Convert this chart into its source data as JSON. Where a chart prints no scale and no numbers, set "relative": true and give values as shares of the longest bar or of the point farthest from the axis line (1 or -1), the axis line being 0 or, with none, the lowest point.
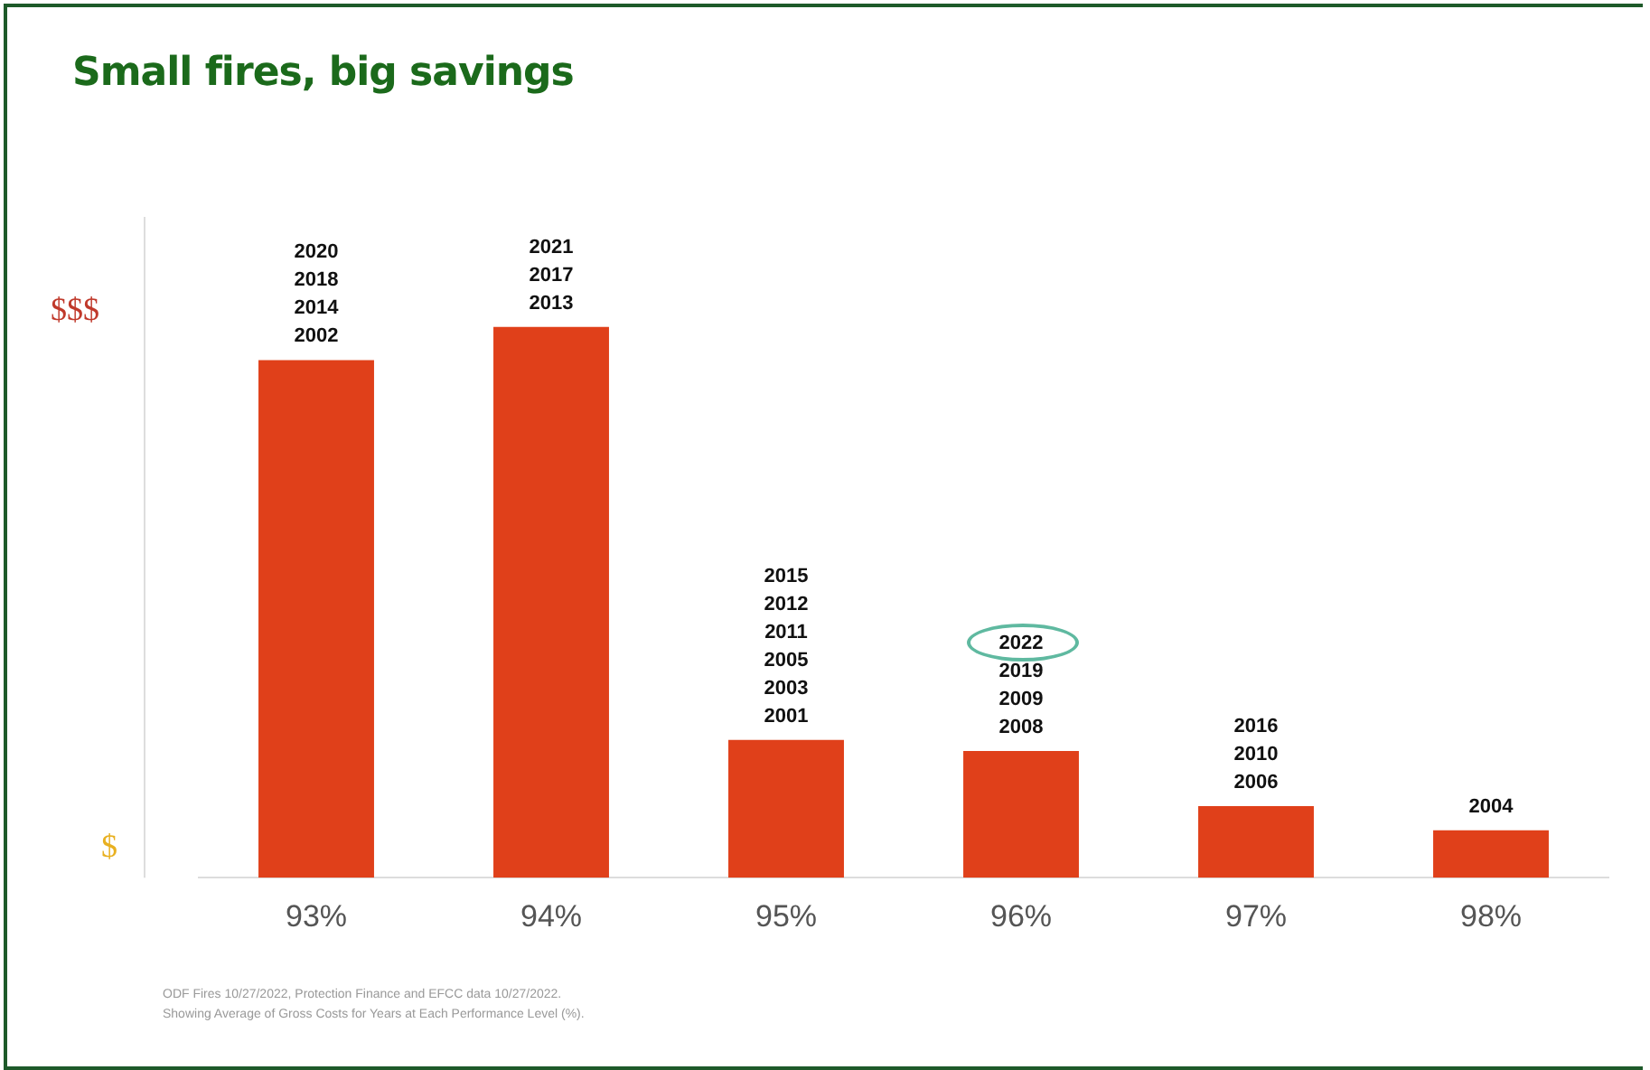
{
  "chart_data": {
    "type": "bar",
    "title": "Small fires, big savings",
    "categories": [
      "93%",
      "94%",
      "95%",
      "96%",
      "97%",
      "98%"
    ],
    "relative": true,
    "color": "#e0401a",
    "values": [
      0.94,
      1,
      0.25,
      0.23,
      0.13,
      0.086
    ],
    "annotations": [
      "$$$",
      "$",
      "ODF Fires 10/27/2022, Protection Finance and EFCC data 10/27/2022.",
      "Showing Average of Gross Costs for Years at Each Performance Level (%).",
      {
        "text": "2020\n2018\n2014\n2002",
        "x": "93%",
        "y": 0.94
      },
      {
        "text": "2021\n2017\n2013",
        "x": "94%",
        "y": 1
      },
      {
        "text": "2015\n2012\n2011\n2005\n2003\n2001",
        "x": "95%",
        "y": 0.25
      },
      {
        "text": "2022\n2019\n2009\n2008",
        "x": "96%",
        "y": 0.23
      },
      {
        "text": "2016\n2010\n2006",
        "x": "97%",
        "y": 0.13
      },
      {
        "text": "2004",
        "x": "98%",
        "y": 0.086
      }
    ],
    "grid": false,
    "legend": false
  }
}
